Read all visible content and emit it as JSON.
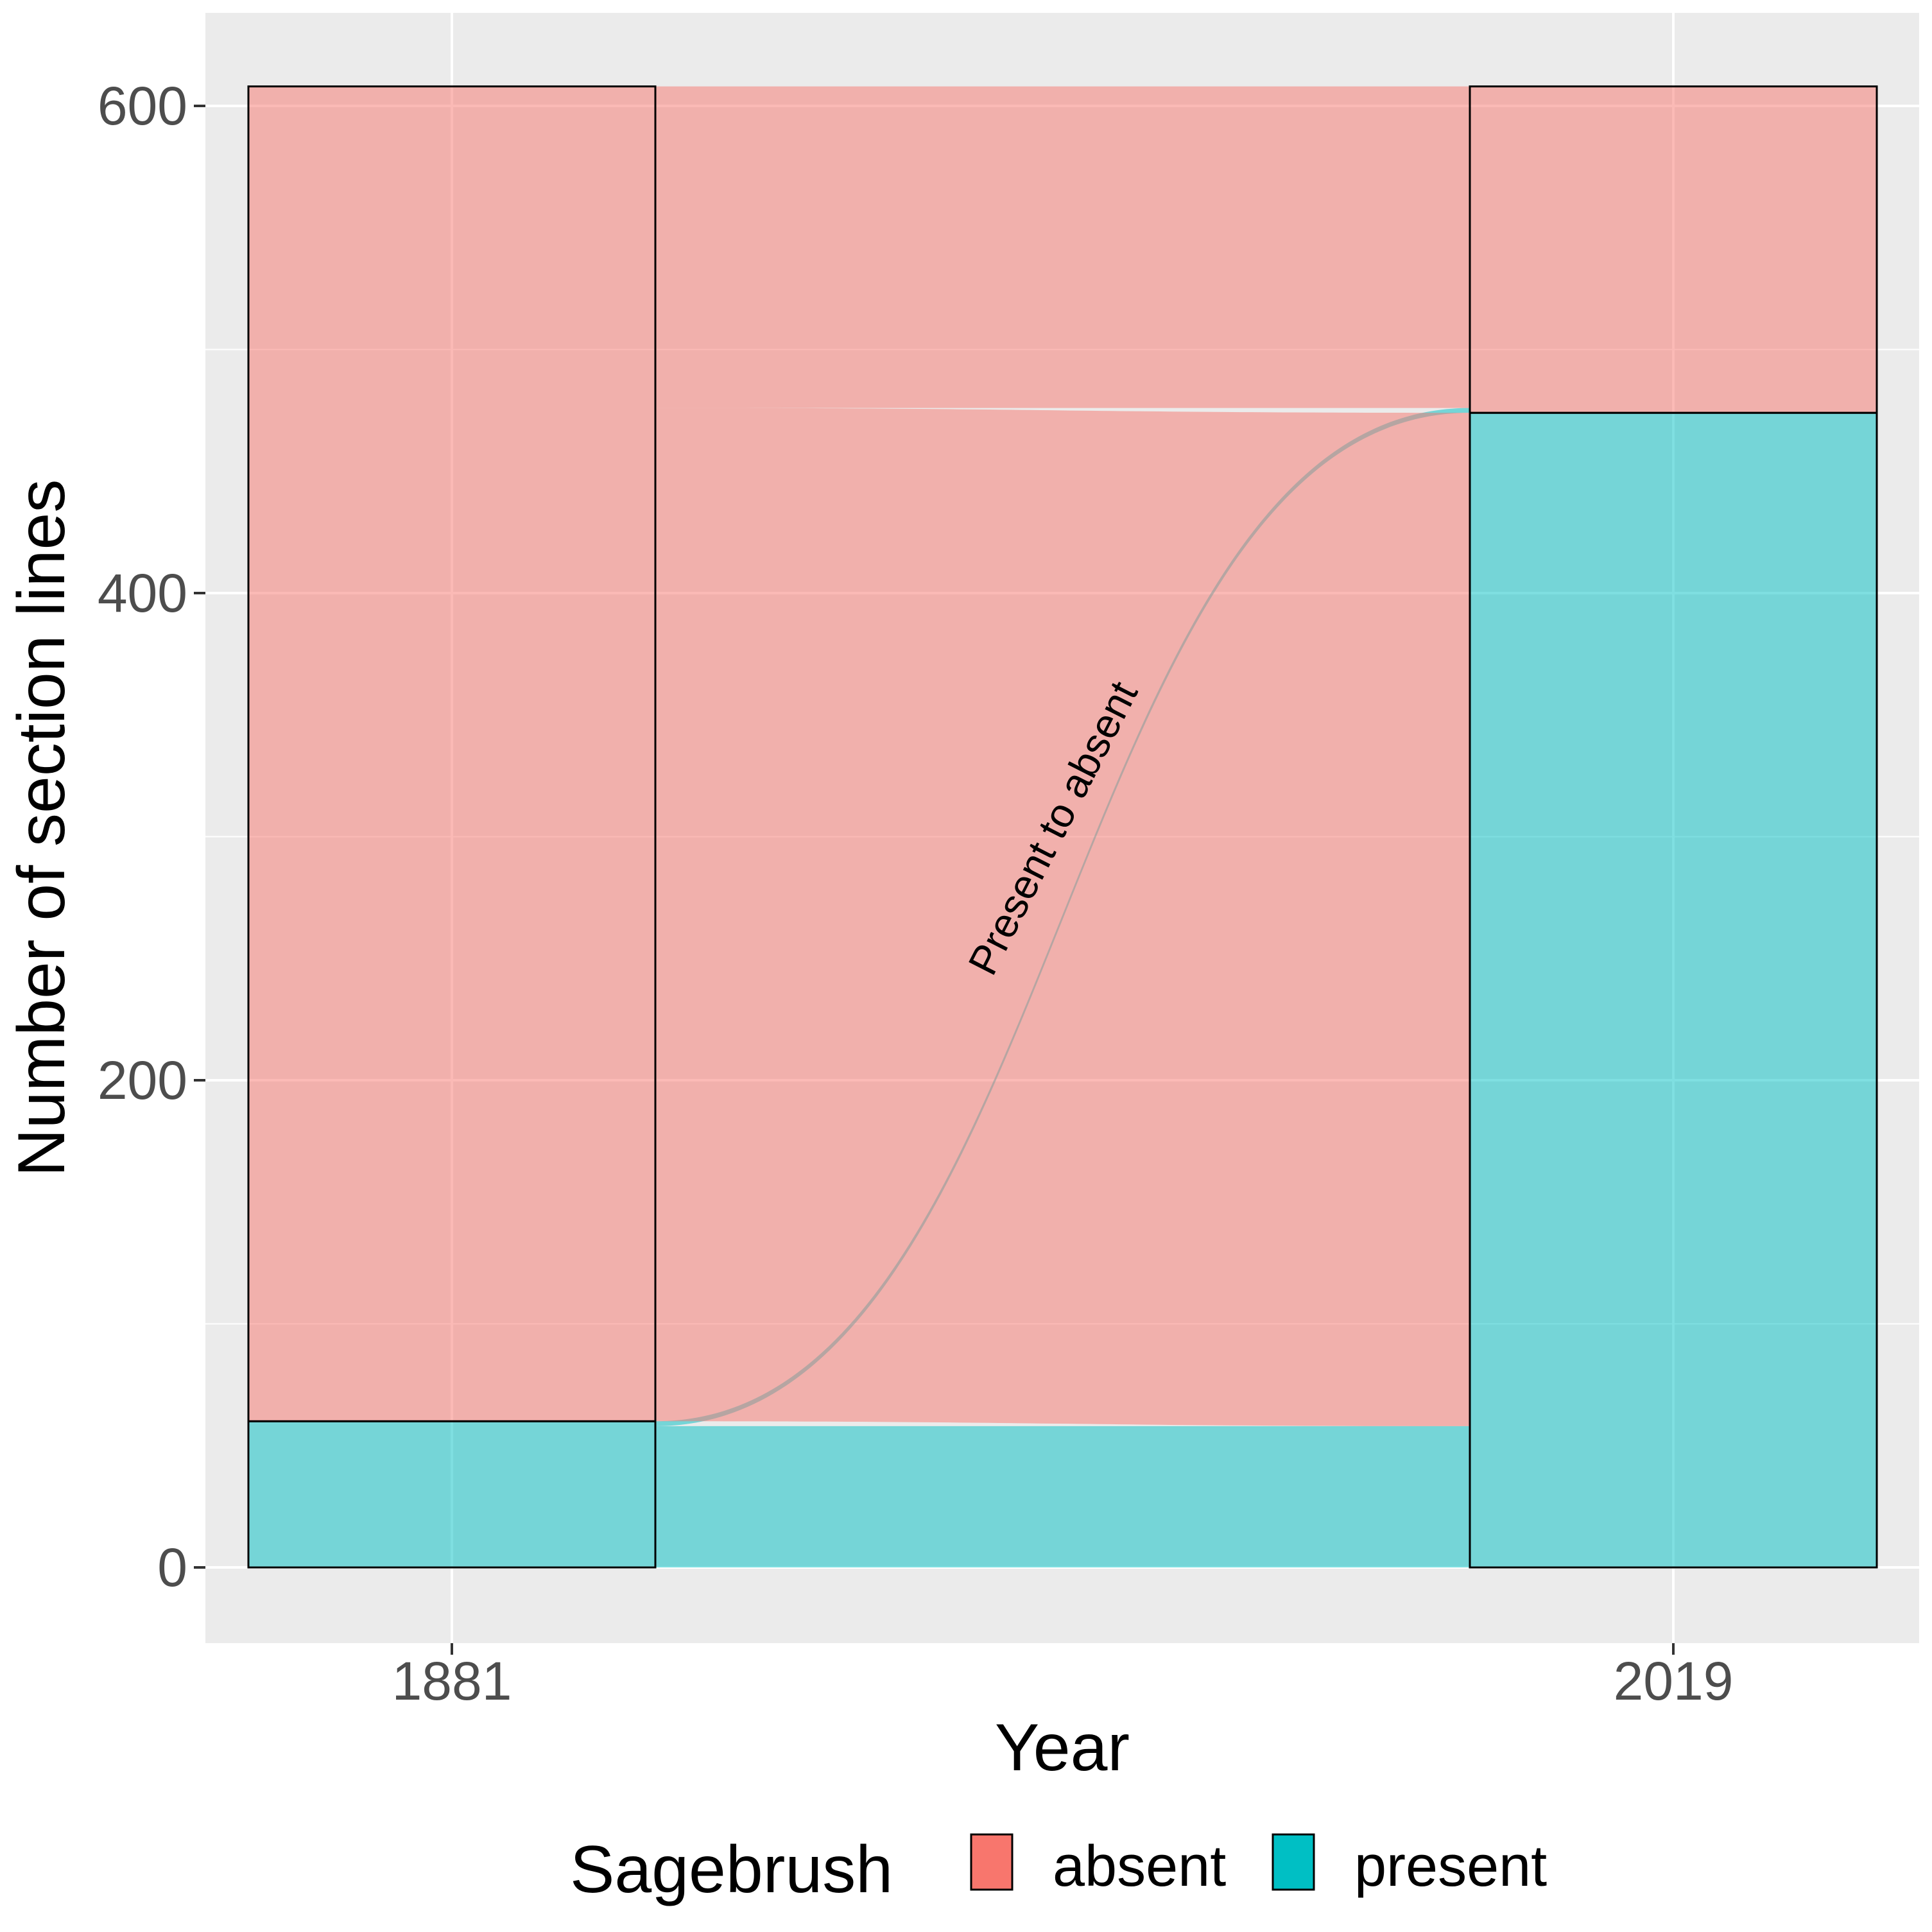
{
  "chart_data": {
    "type": "alluvial",
    "title": "",
    "xlabel": "Year",
    "ylabel": "Number of section lines",
    "categories": [
      "1881",
      "2019"
    ],
    "ylim": [
      -30,
      640
    ],
    "yticks": [
      0,
      200,
      400,
      600
    ],
    "grid": true,
    "stacks": [
      {
        "x": "1881",
        "present": 60,
        "absent": 548
      },
      {
        "x": "2019",
        "present": 474,
        "absent": 134
      }
    ],
    "flows": [
      {
        "from": "present",
        "to": "present",
        "value": 58
      },
      {
        "from": "present",
        "to": "absent",
        "value": 2
      },
      {
        "from": "absent",
        "to": "present",
        "value": 416
      },
      {
        "from": "absent",
        "to": "absent",
        "value": 132
      }
    ],
    "annotation": "Present to absent",
    "legend": {
      "title": "Sagebrush",
      "position": "bottom",
      "items": [
        {
          "label": "absent",
          "color": "#F8766D"
        },
        {
          "label": "present",
          "color": "#00BFC4"
        }
      ]
    },
    "colors": {
      "absent": "#F8766D",
      "present": "#00BFC4",
      "panel": "#EBEBEB",
      "grid": "#FFFFFF"
    }
  }
}
